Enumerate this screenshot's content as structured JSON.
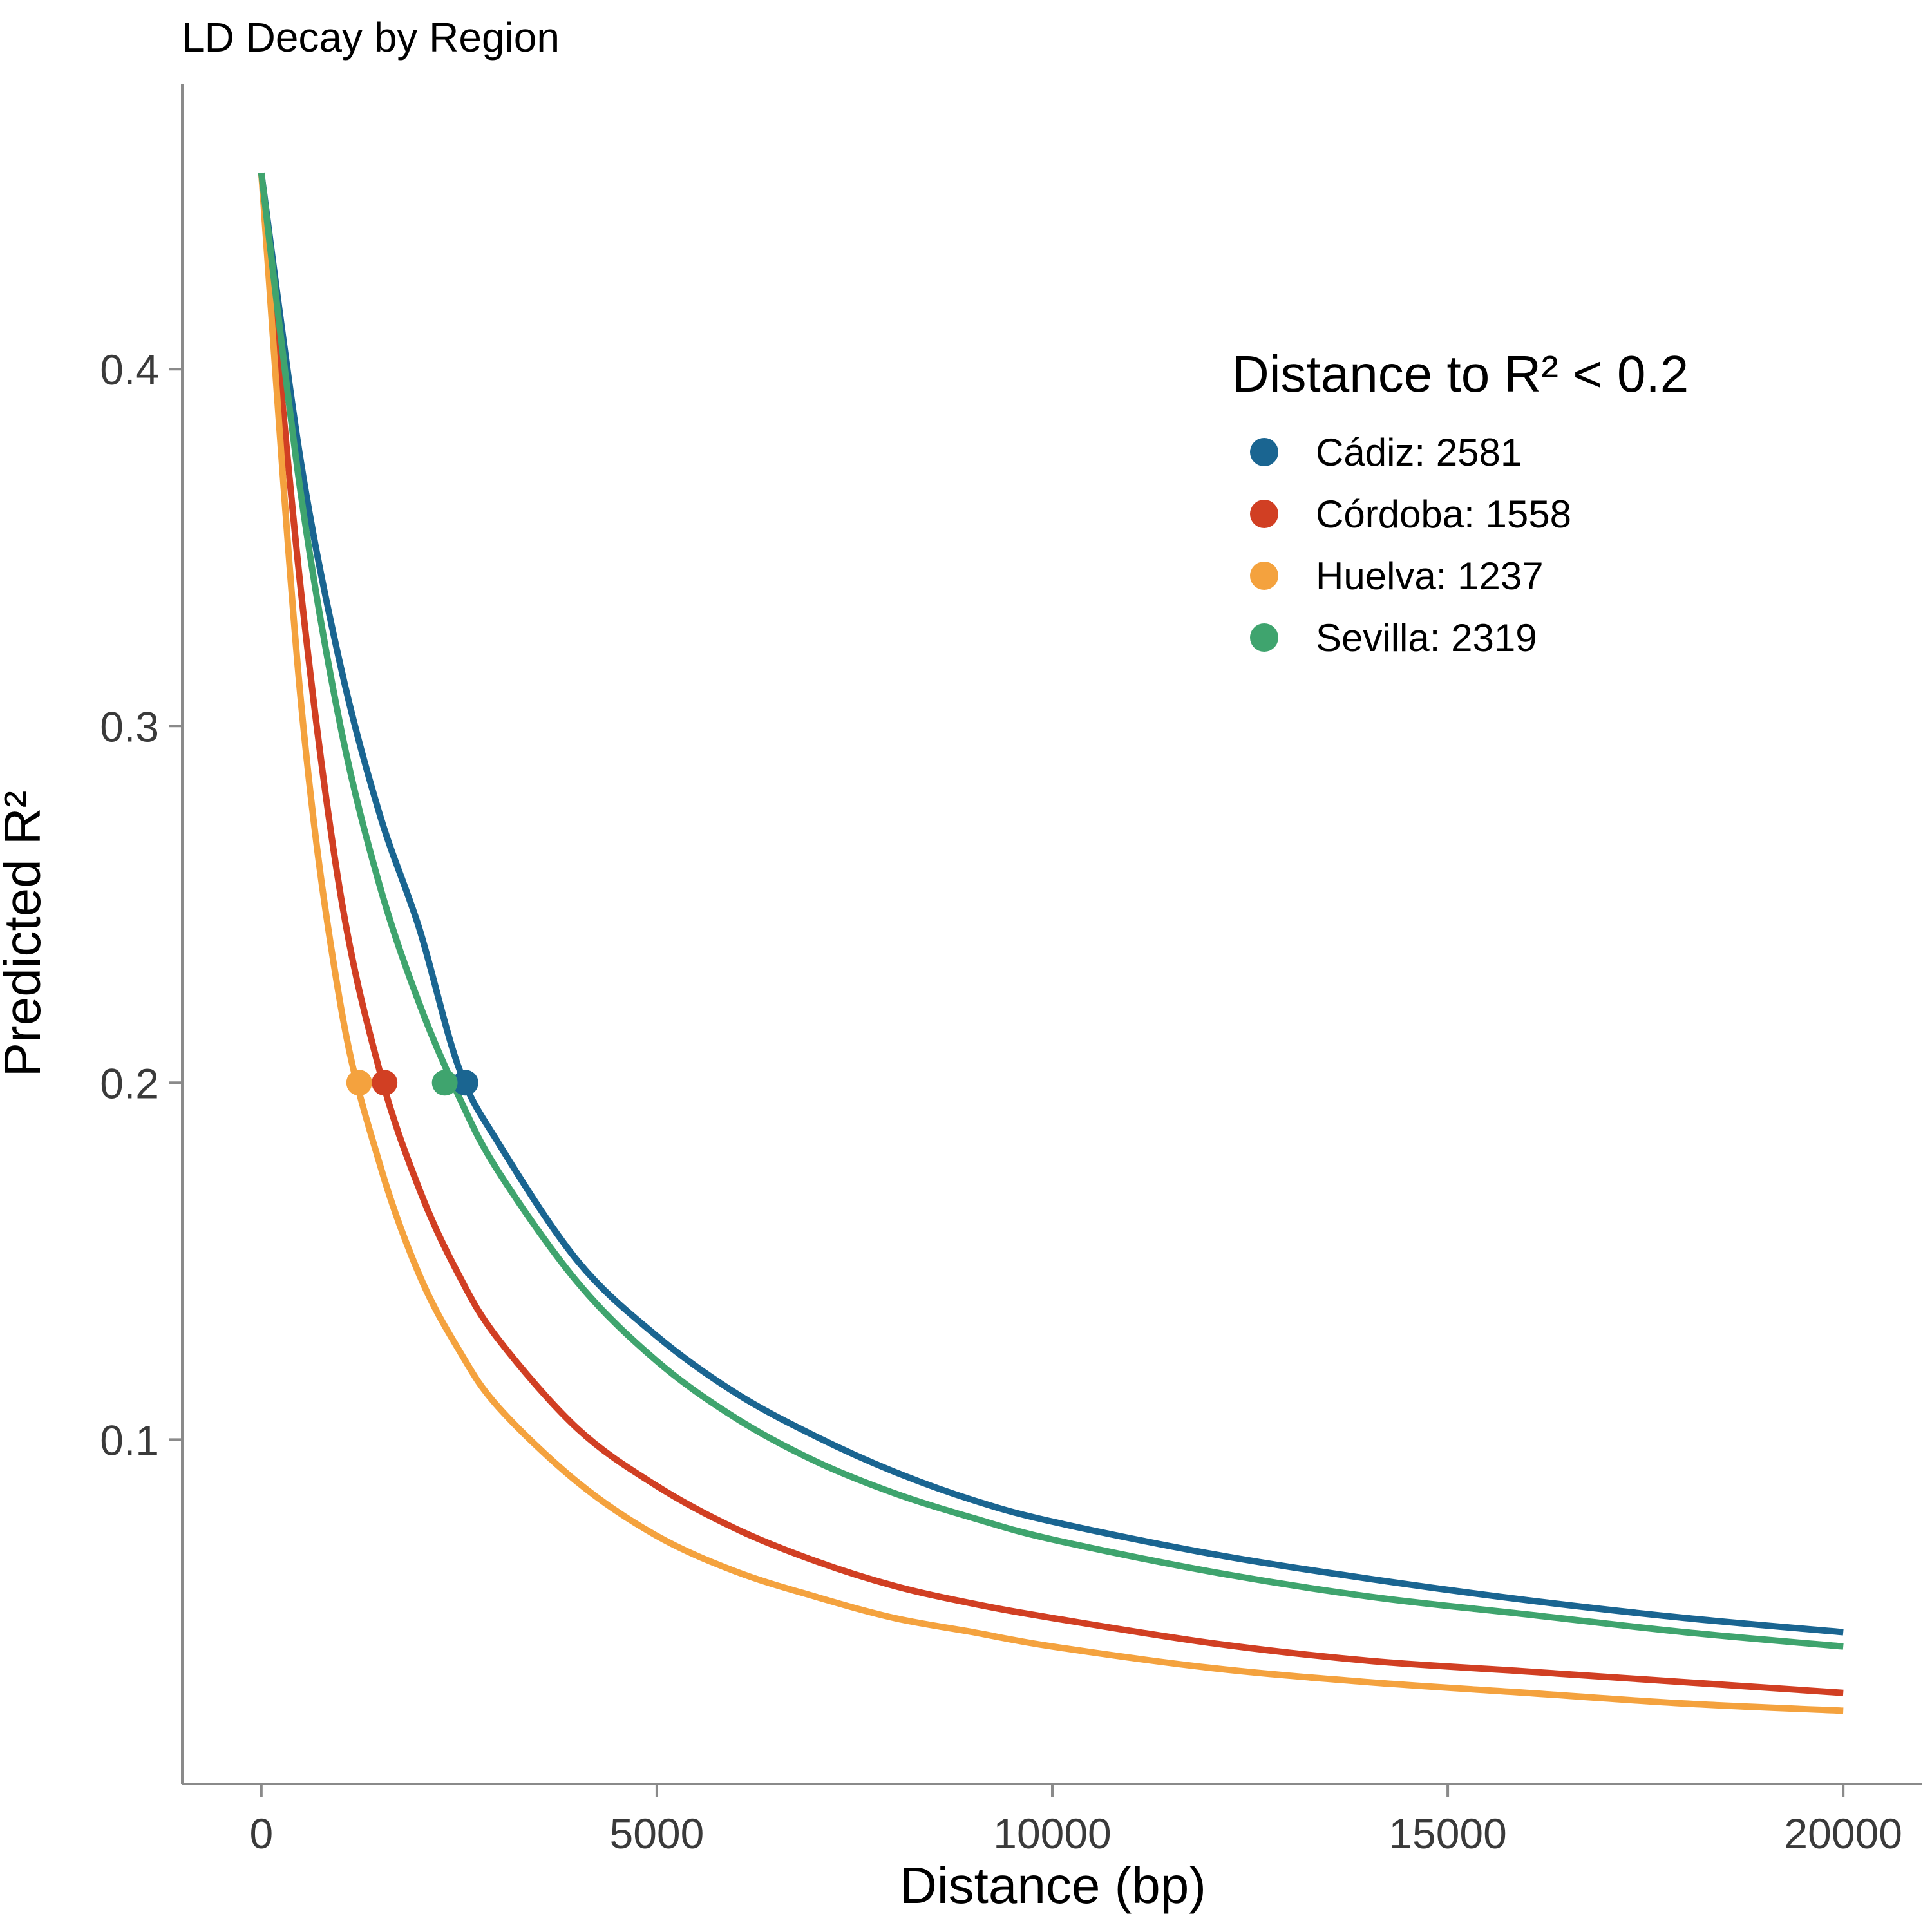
{
  "chart_data": {
    "type": "line",
    "title": "LD Decay by Region",
    "xlabel": "Distance (bp)",
    "ylabel": "Predicted R²",
    "xlim": [
      -1000,
      21000
    ],
    "ylim": [
      0.0035,
      0.48
    ],
    "xticks": [
      0,
      5000,
      10000,
      15000,
      20000
    ],
    "xtick_labels": [
      "0",
      "5000",
      "10000",
      "15000",
      "20000"
    ],
    "yticks": [
      0.1,
      0.2,
      0.3,
      0.4
    ],
    "ytick_labels": [
      "0.1",
      "0.2",
      "0.3",
      "0.4"
    ],
    "grid": false,
    "threshold_r2": 0.2,
    "x": [
      0,
      500,
      1000,
      1500,
      2000,
      2500,
      3000,
      4000,
      5000,
      6000,
      7000,
      8000,
      9000,
      10000,
      12000,
      14000,
      16000,
      18000,
      20000
    ],
    "series": [
      {
        "name": "Cádiz",
        "color": "#1a6591",
        "values": [
          0.455,
          0.374,
          0.317,
          0.275,
          0.243,
          0.204,
          0.183,
          0.15,
          0.129,
          0.113,
          0.101,
          0.091,
          0.083,
          0.077,
          0.068,
          0.061,
          0.055,
          0.05,
          0.046
        ],
        "marker": {
          "x": 2581,
          "y": 0.2
        }
      },
      {
        "name": "Córdoba",
        "color": "#d13f23",
        "values": [
          0.455,
          0.338,
          0.253,
          0.203,
          0.17,
          0.146,
          0.128,
          0.103,
          0.087,
          0.075,
          0.066,
          0.059,
          0.054,
          0.05,
          0.043,
          0.038,
          0.035,
          0.032,
          0.029
        ],
        "marker": {
          "x": 1558,
          "y": 0.2
        }
      },
      {
        "name": "Huelva",
        "color": "#f4a23e",
        "values": [
          0.455,
          0.307,
          0.222,
          0.177,
          0.146,
          0.125,
          0.109,
          0.088,
          0.073,
          0.063,
          0.056,
          0.05,
          0.046,
          0.042,
          0.036,
          0.032,
          0.029,
          0.026,
          0.024
        ],
        "marker": {
          "x": 1237,
          "y": 0.2
        }
      },
      {
        "name": "Sevilla",
        "color": "#3fa46e",
        "values": [
          0.455,
          0.365,
          0.3,
          0.255,
          0.222,
          0.196,
          0.175,
          0.144,
          0.122,
          0.106,
          0.094,
          0.085,
          0.078,
          0.072,
          0.063,
          0.056,
          0.051,
          0.046,
          0.042
        ],
        "marker": {
          "x": 2319,
          "y": 0.2
        }
      }
    ],
    "legend": {
      "title": "Distance to R² < 0.2",
      "placement": "top-right",
      "entries": [
        {
          "label": "Cádiz: 2581",
          "color": "#1a6591"
        },
        {
          "label": "Córdoba: 1558",
          "color": "#d13f23"
        },
        {
          "label": "Huelva: 1237",
          "color": "#f4a23e"
        },
        {
          "label": "Sevilla: 2319",
          "color": "#3fa46e"
        }
      ]
    }
  }
}
